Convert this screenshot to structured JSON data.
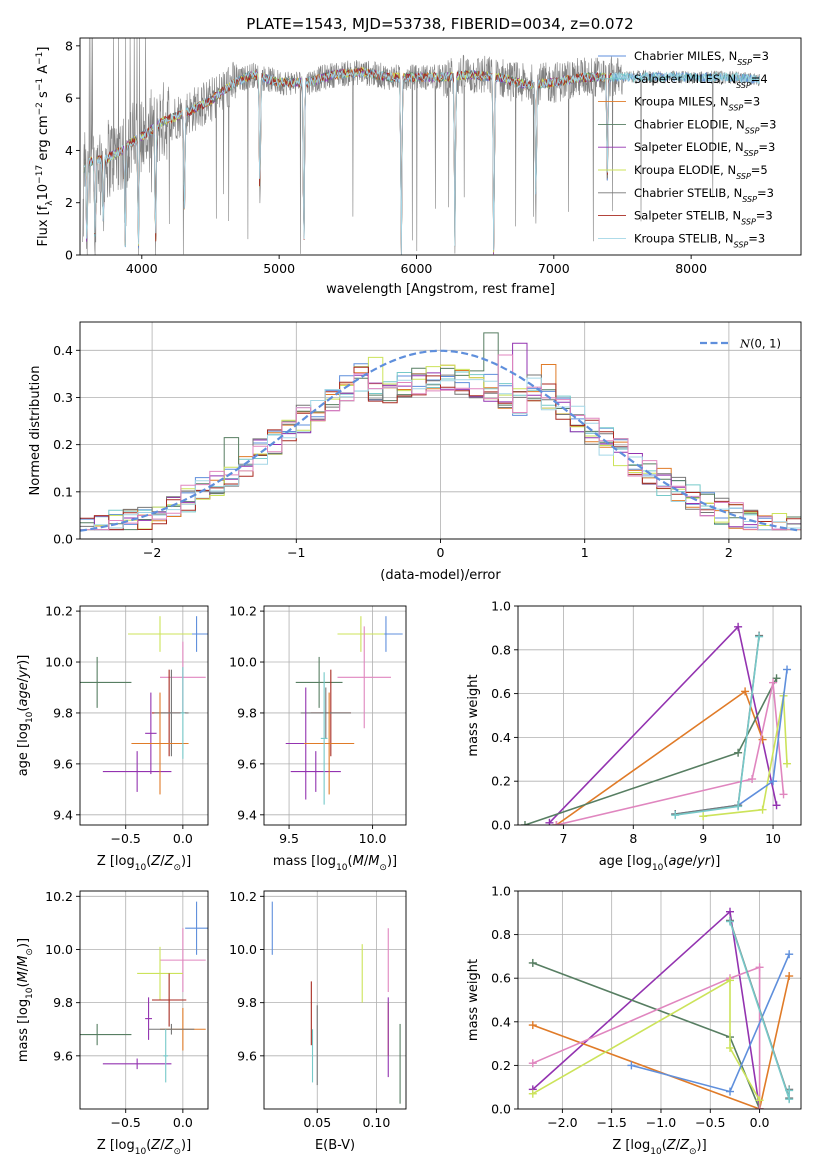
{
  "figure": {
    "title": "PLATE=1543, MJD=53738, FIBERID=0034, z=0.072"
  },
  "colors": {
    "Chabrier MILES": "#5f8fdc",
    "Salpeter MILES": "#76c9c9",
    "Kroupa MILES": "#e07b28",
    "Chabrier ELODIE": "#577e62",
    "Salpeter ELODIE": "#9333b0",
    "Kroupa ELODIE": "#cce35a",
    "Chabrier STELIB": "#777777",
    "Salpeter STELIB": "#a82a20",
    "Kroupa STELIB": "#a3d6e6",
    "pink": "#e086bf",
    "data": "#808080",
    "normal": "#5f8fdc"
  },
  "chart_data": [
    {
      "id": "spectrum",
      "type": "line",
      "xlabel": "wavelength [Angstrom, rest frame]",
      "ylabel": "Flux [f_λ 10^-17 erg cm^-2 s^-1 A^-1]",
      "xlim": [
        3550,
        8800
      ],
      "ylim": [
        0,
        8.3
      ],
      "xticks": [
        4000,
        5000,
        6000,
        7000,
        8000
      ],
      "yticks": [
        0,
        2,
        4,
        6,
        8
      ],
      "grid": false,
      "legend": "right",
      "legend_entries": [
        {
          "series": "Chabrier MILES",
          "pre": "Chabrier MILES, N",
          "n": "3"
        },
        {
          "series": "Salpeter MILES",
          "pre": "Salpeter MILES, N",
          "n": "4"
        },
        {
          "series": "Kroupa MILES",
          "pre": "Kroupa MILES, N",
          "n": "3"
        },
        {
          "series": "Chabrier ELODIE",
          "pre": "Chabrier ELODIE, N",
          "n": "3"
        },
        {
          "series": "Salpeter ELODIE",
          "pre": "Salpeter ELODIE, N",
          "n": "3"
        },
        {
          "series": "Kroupa ELODIE",
          "pre": "Kroupa ELODIE, N",
          "n": "5"
        },
        {
          "series": "Chabrier STELIB",
          "pre": "Chabrier STELIB, N",
          "n": "3"
        },
        {
          "series": "Salpeter STELIB",
          "pre": "Salpeter STELIB, N",
          "n": "3"
        },
        {
          "series": "Kroupa STELIB",
          "pre": "Kroupa STELIB, N",
          "n": "3"
        }
      ],
      "legend_subscript": "SSP",
      "continuum": [
        [
          3570,
          3.5
        ],
        [
          3650,
          3.6
        ],
        [
          3750,
          3.7
        ],
        [
          3850,
          4.0
        ],
        [
          3950,
          4.4
        ],
        [
          4050,
          4.7
        ],
        [
          4150,
          5.1
        ],
        [
          4250,
          5.3
        ],
        [
          4350,
          5.5
        ],
        [
          4500,
          5.9
        ],
        [
          4650,
          6.5
        ],
        [
          4800,
          6.9
        ],
        [
          5000,
          6.6
        ],
        [
          5200,
          6.6
        ],
        [
          5400,
          6.9
        ],
        [
          5600,
          7.0
        ],
        [
          5800,
          6.8
        ],
        [
          6000,
          6.8
        ],
        [
          6200,
          6.8
        ],
        [
          6400,
          6.9
        ],
        [
          6600,
          6.8
        ],
        [
          6800,
          6.5
        ],
        [
          7000,
          6.6
        ],
        [
          7200,
          6.8
        ],
        [
          7400,
          6.8
        ],
        [
          7700,
          6.8
        ],
        [
          8000,
          6.8
        ],
        [
          8300,
          6.8
        ],
        [
          8500,
          6.7
        ]
      ],
      "model_start": 3570,
      "model_end": 8500,
      "model_end_other": 7420,
      "dips": [
        [
          3570,
          0
        ],
        [
          3600,
          0.3
        ],
        [
          3660,
          0.5
        ],
        [
          3720,
          1.2
        ],
        [
          3880,
          0.4
        ],
        [
          3975,
          0.3
        ],
        [
          4100,
          0.2
        ],
        [
          4310,
          1.5
        ],
        [
          4860,
          2.3
        ],
        [
          5180,
          0
        ],
        [
          5890,
          0
        ],
        [
          6280,
          0.5
        ],
        [
          6563,
          0
        ],
        [
          6870,
          2.0
        ],
        [
          7390,
          3.0
        ]
      ]
    },
    {
      "id": "residuals",
      "type": "histogram",
      "xlabel": "(data-model)/error",
      "ylabel": "Normed distribution",
      "xlim": [
        -2.5,
        2.5
      ],
      "ylim": [
        0,
        0.46
      ],
      "xticks": [
        -2,
        -1,
        0,
        1,
        2
      ],
      "xtick_labels": [
        "−2",
        "−1",
        "0",
        "1",
        "2"
      ],
      "yticks": [
        0.0,
        0.1,
        0.2,
        0.3,
        0.4
      ],
      "grid": true,
      "legend": "upper right",
      "legend_label": "N(0, 1)",
      "bin_width": 0.1,
      "highlights": [
        {
          "x": 0.35,
          "h": 0.437,
          "series": "Chabrier ELODIE"
        },
        {
          "x": 0.55,
          "h": 0.415,
          "series": "Salpeter ELODIE"
        },
        {
          "x": 0.45,
          "h": 0.39,
          "series": "pink"
        },
        {
          "x": -0.45,
          "h": 0.385,
          "series": "Kroupa ELODIE"
        },
        {
          "x": 0.75,
          "h": 0.37,
          "series": "Kroupa MILES"
        },
        {
          "x": -1.45,
          "h": 0.215,
          "series": "Chabrier ELODIE"
        },
        {
          "x": 1.85,
          "h": 0.095,
          "series": "Chabrier ELODIE"
        }
      ]
    },
    {
      "id": "age-vs-Z",
      "type": "errorbar",
      "xlabel": "Z [log10(Z/Z⊙)]",
      "ylabel": "age [log10(age/yr)]",
      "xlim": [
        -0.9,
        0.22
      ],
      "ylim": [
        9.36,
        10.22
      ],
      "xticks": [
        -0.5,
        0.0
      ],
      "xtick_labels": [
        "−0.5",
        "0.0"
      ],
      "yticks": [
        9.4,
        9.6,
        9.8,
        10.0,
        10.2
      ],
      "grid": true,
      "points": [
        {
          "x": 0.12,
          "y": 10.11,
          "dx": 0.1,
          "dy": 0.07,
          "series": "Chabrier MILES"
        },
        {
          "x": -0.2,
          "y": 10.11,
          "dx": 0.28,
          "dy": 0.07,
          "series": "Kroupa ELODIE"
        },
        {
          "x": 0.0,
          "y": 9.94,
          "dx": 0.2,
          "dy": 0.14,
          "series": "pink"
        },
        {
          "x": -0.75,
          "y": 9.92,
          "dx": 0.3,
          "dy": 0.1,
          "series": "Chabrier ELODIE"
        },
        {
          "x": -0.12,
          "y": 9.8,
          "dx": 0.15,
          "dy": 0.17,
          "series": "Salpeter STELIB"
        },
        {
          "x": -0.1,
          "y": 9.8,
          "dx": 0.15,
          "dy": 0.17,
          "series": "Chabrier STELIB"
        },
        {
          "x": -0.28,
          "y": 9.72,
          "dx": 0.05,
          "dy": 0.16,
          "series": "Salpeter ELODIE"
        },
        {
          "x": -0.4,
          "y": 9.57,
          "dx": 0.3,
          "dy": 0.08,
          "series": "Salpeter ELODIE"
        },
        {
          "x": -0.2,
          "y": 9.68,
          "dx": 0.25,
          "dy": 0.2,
          "series": "Kroupa MILES"
        },
        {
          "x": 0.0,
          "y": 9.8,
          "dx": 0.02,
          "dy": 0.18,
          "series": "Salpeter MILES"
        }
      ]
    },
    {
      "id": "age-vs-mass",
      "type": "errorbar",
      "xlabel": "mass [log10(M/M⊙)]",
      "ylabel": "",
      "xlim": [
        9.35,
        10.2
      ],
      "ylim": [
        9.36,
        10.22
      ],
      "xticks": [
        9.5,
        10.0
      ],
      "xtick_labels": [
        "9.5",
        "10.0"
      ],
      "yticks": [
        9.4,
        9.6,
        9.8,
        10.0,
        10.2
      ],
      "grid": true,
      "points": [
        {
          "x": 10.08,
          "y": 10.11,
          "dx": 0.1,
          "dy": 0.07,
          "series": "Chabrier MILES"
        },
        {
          "x": 9.93,
          "y": 10.11,
          "dx": 0.14,
          "dy": 0.07,
          "series": "Kroupa ELODIE"
        },
        {
          "x": 9.95,
          "y": 9.94,
          "dx": 0.16,
          "dy": 0.2,
          "series": "pink"
        },
        {
          "x": 9.68,
          "y": 9.92,
          "dx": 0.14,
          "dy": 0.1,
          "series": "Chabrier ELODIE"
        },
        {
          "x": 9.75,
          "y": 9.8,
          "dx": 0.12,
          "dy": 0.17,
          "series": "Salpeter STELIB"
        },
        {
          "x": 9.72,
          "y": 9.8,
          "dx": 0.15,
          "dy": 0.1,
          "series": "Chabrier STELIB"
        },
        {
          "x": 9.6,
          "y": 9.68,
          "dx": 0.12,
          "dy": 0.22,
          "series": "Salpeter ELODIE"
        },
        {
          "x": 9.66,
          "y": 9.57,
          "dx": 0.15,
          "dy": 0.08,
          "series": "Salpeter ELODIE"
        },
        {
          "x": 9.74,
          "y": 9.68,
          "dx": 0.15,
          "dy": 0.2,
          "series": "Kroupa MILES"
        },
        {
          "x": 9.71,
          "y": 9.7,
          "dx": 0.02,
          "dy": 0.26,
          "series": "Salpeter MILES"
        }
      ]
    },
    {
      "id": "massweight-vs-age",
      "type": "line",
      "xlabel": "age [log10(age/yr)]",
      "ylabel": "mass weight",
      "xlim": [
        6.35,
        10.4
      ],
      "ylim": [
        0,
        1
      ],
      "xticks": [
        7,
        8,
        9,
        10
      ],
      "yticks": [
        0.0,
        0.2,
        0.4,
        0.6,
        0.8,
        1.0
      ],
      "grid": true,
      "series": [
        {
          "name": "Salpeter ELODIE",
          "x": [
            6.8,
            9.5,
            10.05
          ],
          "y": [
            0.01,
            0.905,
            0.09
          ]
        },
        {
          "name": "Kroupa MILES",
          "x": [
            6.9,
            9.6,
            9.85
          ],
          "y": [
            0.0,
            0.61,
            0.39
          ]
        },
        {
          "name": "Chabrier ELODIE",
          "x": [
            6.45,
            9.5,
            10.05
          ],
          "y": [
            0.0,
            0.33,
            0.67
          ]
        },
        {
          "name": "pink",
          "x": [
            6.9,
            9.7,
            10.0,
            10.15
          ],
          "y": [
            0.0,
            0.21,
            0.65,
            0.14
          ]
        },
        {
          "name": "Kroupa ELODIE",
          "x": [
            9.0,
            9.85,
            10.15,
            10.2
          ],
          "y": [
            0.04,
            0.07,
            0.59,
            0.28
          ]
        },
        {
          "name": "Chabrier MILES",
          "x": [
            8.6,
            9.5,
            10.0,
            10.2
          ],
          "y": [
            0.05,
            0.09,
            0.2,
            0.71
          ]
        },
        {
          "name": "Chabrier STELIB",
          "x": [
            8.6,
            9.5,
            9.8
          ],
          "y": [
            0.05,
            0.09,
            0.865
          ]
        },
        {
          "name": "Salpeter MILES",
          "x": [
            8.6,
            9.5,
            9.8
          ],
          "y": [
            0.045,
            0.085,
            0.86
          ]
        }
      ]
    },
    {
      "id": "mass-vs-Z",
      "type": "errorbar",
      "xlabel": "Z [log10(Z/Z⊙)]",
      "ylabel": "mass [log10(M/M⊙)]",
      "xlim": [
        -0.9,
        0.22
      ],
      "ylim": [
        9.4,
        10.22
      ],
      "xticks": [
        -0.5,
        0.0
      ],
      "xtick_labels": [
        "−0.5",
        "0.0"
      ],
      "yticks": [
        9.6,
        9.8,
        10.0,
        10.2
      ],
      "grid": true,
      "points": [
        {
          "x": 0.12,
          "y": 10.08,
          "dx": 0.1,
          "dy": 0.1,
          "series": "Chabrier MILES"
        },
        {
          "x": 0.0,
          "y": 9.96,
          "dx": 0.2,
          "dy": 0.12,
          "series": "pink"
        },
        {
          "x": -0.2,
          "y": 9.91,
          "dx": 0.2,
          "dy": 0.1,
          "series": "Kroupa ELODIE"
        },
        {
          "x": -0.12,
          "y": 9.81,
          "dx": 0.15,
          "dy": 0.1,
          "series": "Salpeter STELIB"
        },
        {
          "x": -0.3,
          "y": 9.74,
          "dx": 0.03,
          "dy": 0.08,
          "series": "Salpeter ELODIE"
        },
        {
          "x": 0.0,
          "y": 9.7,
          "dx": 0.2,
          "dy": 0.08,
          "series": "Kroupa MILES"
        },
        {
          "x": -0.1,
          "y": 9.7,
          "dx": 0.2,
          "dy": 0.02,
          "series": "Chabrier STELIB"
        },
        {
          "x": -0.75,
          "y": 9.68,
          "dx": 0.3,
          "dy": 0.04,
          "series": "Chabrier ELODIE"
        },
        {
          "x": -0.4,
          "y": 9.57,
          "dx": 0.3,
          "dy": 0.02,
          "series": "Salpeter ELODIE"
        },
        {
          "x": -0.15,
          "y": 9.6,
          "dx": 0.02,
          "dy": 0.1,
          "series": "Salpeter MILES"
        }
      ]
    },
    {
      "id": "mass-vs-ebv",
      "type": "errorbar",
      "xlabel": "E(B-V)",
      "ylabel": "",
      "xlim": [
        0.005,
        0.125
      ],
      "ylim": [
        9.4,
        10.22
      ],
      "xticks": [
        0.05,
        0.1
      ],
      "xtick_labels": [
        "0.05",
        "0.10"
      ],
      "yticks": [
        9.6,
        9.8,
        10.0,
        10.2
      ],
      "grid": true,
      "points": [
        {
          "x": 0.012,
          "y": 10.08,
          "dx": 0.0,
          "dy": 0.1,
          "series": "Chabrier MILES"
        },
        {
          "x": 0.11,
          "y": 9.96,
          "dx": 0.0,
          "dy": 0.12,
          "series": "pink"
        },
        {
          "x": 0.088,
          "y": 9.91,
          "dx": 0.0,
          "dy": 0.11,
          "series": "Kroupa ELODIE"
        },
        {
          "x": 0.045,
          "y": 9.76,
          "dx": 0.0,
          "dy": 0.12,
          "series": "Salpeter STELIB"
        },
        {
          "x": 0.11,
          "y": 9.7,
          "dx": 0.0,
          "dy": 0.1,
          "series": "Kroupa MILES"
        },
        {
          "x": 0.05,
          "y": 9.64,
          "dx": 0.0,
          "dy": 0.15,
          "series": "Chabrier STELIB"
        },
        {
          "x": 0.11,
          "y": 9.67,
          "dx": 0.0,
          "dy": 0.15,
          "series": "Salpeter ELODIE"
        },
        {
          "x": 0.12,
          "y": 9.57,
          "dx": 0.0,
          "dy": 0.15,
          "series": "Chabrier ELODIE"
        },
        {
          "x": 0.046,
          "y": 9.6,
          "dx": 0.0,
          "dy": 0.1,
          "series": "Salpeter MILES"
        }
      ]
    },
    {
      "id": "massweight-vs-Z",
      "type": "line",
      "xlabel": "Z [log10(Z/Z⊙)]",
      "ylabel": "mass weight",
      "xlim": [
        -2.45,
        0.42
      ],
      "ylim": [
        0,
        1
      ],
      "xticks": [
        -2.0,
        -1.5,
        -1.0,
        -0.5,
        0.0
      ],
      "xtick_labels": [
        "−2.0",
        "−1.5",
        "−1.0",
        "−0.5",
        "0.0"
      ],
      "yticks": [
        0.0,
        0.2,
        0.4,
        0.6,
        0.8,
        1.0
      ],
      "grid": true,
      "series": [
        {
          "name": "Salpeter ELODIE",
          "x": [
            -2.3,
            -0.3,
            0.0
          ],
          "y": [
            0.09,
            0.905,
            0.0
          ]
        },
        {
          "name": "Chabrier ELODIE",
          "x": [
            -2.3,
            -0.3,
            0.0
          ],
          "y": [
            0.67,
            0.33,
            0.0
          ]
        },
        {
          "name": "Kroupa MILES",
          "x": [
            -2.3,
            0.0,
            0.3
          ],
          "y": [
            0.385,
            0.0,
            0.61
          ]
        },
        {
          "name": "pink",
          "x": [
            -2.3,
            -0.3,
            0.0,
            0.0
          ],
          "y": [
            0.21,
            0.6,
            0.65,
            0.0
          ]
        },
        {
          "name": "Kroupa ELODIE",
          "x": [
            -2.3,
            -0.3,
            -0.3,
            0.0
          ],
          "y": [
            0.07,
            0.59,
            0.28,
            0.04
          ]
        },
        {
          "name": "Chabrier MILES",
          "x": [
            -1.3,
            -0.3,
            0.3
          ],
          "y": [
            0.2,
            0.08,
            0.71
          ]
        },
        {
          "name": "Chabrier STELIB",
          "x": [
            -0.3,
            0.3,
            0.3
          ],
          "y": [
            0.865,
            0.05,
            0.09
          ]
        },
        {
          "name": "Salpeter MILES",
          "x": [
            -0.3,
            0.3,
            0.3
          ],
          "y": [
            0.86,
            0.045,
            0.085
          ]
        }
      ]
    }
  ]
}
